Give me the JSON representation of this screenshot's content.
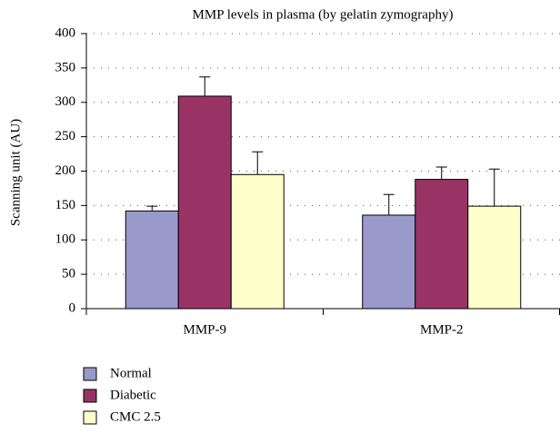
{
  "chart_data": {
    "type": "bar",
    "title": "MMP levels in plasma (by gelatin zymography)",
    "y_label": "Scanning unit (AU)",
    "categories": [
      "MMP-9",
      "MMP-2"
    ],
    "series": [
      {
        "name": "Normal",
        "color": "#9999cc",
        "values": [
          142,
          136
        ],
        "errors": [
          7,
          30
        ]
      },
      {
        "name": "Diabetic",
        "color": "#993366",
        "values": [
          309,
          188
        ],
        "errors": [
          28,
          18
        ]
      },
      {
        "name": "CMC 2.5",
        "color": "#ffffcc",
        "values": [
          195,
          149
        ],
        "errors": [
          33,
          54
        ]
      }
    ],
    "ylim": [
      0,
      400
    ],
    "yticks": [
      0,
      50,
      100,
      150,
      200,
      250,
      300,
      350,
      400
    ],
    "grid": true,
    "legend": "bottom-left"
  }
}
